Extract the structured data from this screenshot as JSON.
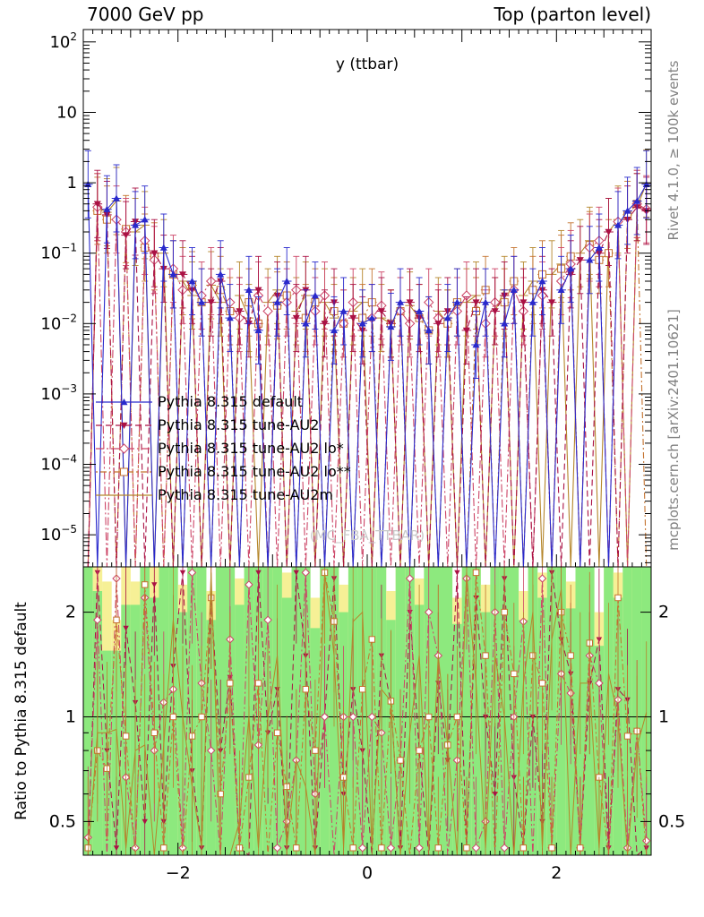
{
  "header": {
    "left": "7000 GeV pp",
    "right": "Top (parton level)"
  },
  "side_captions": {
    "top": "Rivet 4.1.0, ≥ 100k events",
    "bottom": "mcplots.cern.ch [arXiv:2401.10621]"
  },
  "ratio_ylabel": "Ratio to Pythia 8.315 default",
  "watermark": "(MC_FBA_TTBAR)",
  "chart_data": {
    "type": "line",
    "title": "y (ttbar)",
    "x_range": [
      -3,
      3
    ],
    "n_bins": 60,
    "y_scale": "log",
    "y_range": [
      3.5e-06,
      150
    ],
    "err_factor_main": 3,
    "colors": {
      "band_green": "#8de97e",
      "band_yellow": "#f6f096",
      "frame": "#000000"
    },
    "x_ticks": [
      {
        "v": -2,
        "label": "−2"
      },
      {
        "v": 0,
        "label": "0"
      },
      {
        "v": 2,
        "label": "2"
      }
    ],
    "y_ticks": [
      {
        "v": 100,
        "mant": "10",
        "exp": "2"
      },
      {
        "v": 10,
        "mant": "10",
        "exp": ""
      },
      {
        "v": 1,
        "mant": "1",
        "exp": ""
      },
      {
        "v": 0.1,
        "mant": "10",
        "exp": "−1"
      },
      {
        "v": 0.01,
        "mant": "10",
        "exp": "−2"
      },
      {
        "v": 0.001,
        "mant": "10",
        "exp": "−3"
      },
      {
        "v": 0.0001,
        "mant": "10",
        "exp": "−4"
      },
      {
        "v": 1e-05,
        "mant": "10",
        "exp": "−5"
      }
    ],
    "series": [
      {
        "name": "Pythia 8.315 default",
        "color": "#2929cc",
        "dash": "",
        "marker": "triangle-up",
        "values": [
          0.95,
          3e-06,
          0.42,
          0.6,
          3e-06,
          0.25,
          0.3,
          3e-06,
          0.12,
          0.05,
          3e-06,
          0.04,
          0.02,
          3e-06,
          0.05,
          0.012,
          3e-06,
          0.03,
          0.008,
          3e-06,
          0.02,
          0.04,
          3e-06,
          0.01,
          0.025,
          3e-06,
          0.008,
          0.015,
          3e-06,
          0.01,
          0.012,
          3e-06,
          0.009,
          0.02,
          3e-06,
          0.015,
          0.008,
          3e-06,
          0.012,
          0.02,
          3e-06,
          0.005,
          0.02,
          3e-06,
          0.01,
          0.03,
          3e-06,
          0.02,
          0.04,
          3e-06,
          0.03,
          0.06,
          3e-06,
          0.08,
          0.12,
          3e-06,
          0.25,
          0.4,
          0.55,
          0.95
        ]
      },
      {
        "name": "Pythia 8.315 tune-AU2",
        "color": "#aa1144",
        "dash": "7 4",
        "marker": "triangle-down",
        "values": [
          3e-06,
          0.5,
          0.35,
          3e-06,
          0.18,
          0.28,
          3e-06,
          0.1,
          0.06,
          3e-06,
          0.05,
          0.03,
          3e-06,
          0.02,
          0.04,
          3e-06,
          0.015,
          0.01,
          0.03,
          3e-06,
          0.025,
          3e-06,
          0.012,
          0.03,
          3e-06,
          0.01,
          0.02,
          3e-06,
          0.012,
          0.008,
          3e-06,
          0.015,
          0.01,
          3e-06,
          0.02,
          0.012,
          3e-06,
          0.01,
          0.015,
          3e-06,
          0.008,
          0.02,
          3e-06,
          0.015,
          0.025,
          3e-06,
          0.02,
          3e-06,
          0.03,
          0.02,
          3e-06,
          0.05,
          0.08,
          3e-06,
          0.1,
          0.2,
          3e-06,
          0.3,
          0.45,
          0.4
        ]
      },
      {
        "name": "Pythia 8.315 tune-AU2 lo*",
        "color": "#cc4466",
        "dash": "9 3 2 3",
        "marker": "diamond-open",
        "values": [
          3e-06,
          0.45,
          3e-06,
          0.3,
          0.2,
          3e-06,
          0.15,
          0.08,
          3e-06,
          0.06,
          0.03,
          3e-06,
          0.025,
          0.04,
          3e-06,
          0.02,
          0.012,
          3e-06,
          0.025,
          0.015,
          3e-06,
          0.02,
          0.03,
          3e-06,
          0.015,
          0.025,
          3e-06,
          0.01,
          0.02,
          3e-06,
          0.012,
          0.018,
          3e-06,
          0.015,
          0.01,
          3e-06,
          0.02,
          0.012,
          3e-06,
          0.015,
          0.025,
          3e-06,
          0.01,
          0.02,
          3e-06,
          0.03,
          0.015,
          3e-06,
          0.025,
          3e-06,
          0.04,
          0.07,
          3e-06,
          0.12,
          0.15,
          3e-06,
          0.28,
          3e-06,
          0.5,
          0.42
        ]
      },
      {
        "name": "Pythia 8.315 tune-AU2 lo**",
        "color": "#c4722e",
        "dash": "2 3 7 3",
        "marker": "square-open",
        "values": [
          3e-06,
          0.4,
          0.3,
          3e-06,
          0.22,
          3e-06,
          0.12,
          0.09,
          3e-06,
          0.05,
          3e-06,
          0.035,
          0.02,
          3e-06,
          0.03,
          0.015,
          3e-06,
          0.02,
          0.01,
          3e-06,
          0.018,
          0.025,
          3e-06,
          0.012,
          0.02,
          3e-06,
          0.015,
          0.01,
          3e-06,
          0.012,
          0.02,
          3e-06,
          0.01,
          0.015,
          3e-06,
          0.012,
          0.008,
          3e-06,
          0.01,
          0.02,
          3e-06,
          0.015,
          0.03,
          3e-06,
          0.02,
          0.04,
          3e-06,
          0.03,
          0.05,
          3e-06,
          0.06,
          0.09,
          3e-06,
          0.13,
          0.08,
          0.1,
          3e-06,
          0.35,
          0.5,
          3e-06
        ]
      },
      {
        "name": "Pythia 8.315 tune-AU2m",
        "color": "#b5862b",
        "dash": "",
        "marker": "none",
        "values": [
          3e-06,
          0.45,
          0.38,
          0.55,
          3e-06,
          0.2,
          0.25,
          3e-06,
          0.1,
          3e-06,
          0.04,
          0.025,
          3e-06,
          0.035,
          0.02,
          3e-06,
          0.025,
          0.012,
          3e-06,
          0.02,
          0.03,
          3e-06,
          0.015,
          0.025,
          3e-06,
          0.02,
          0.012,
          3e-06,
          0.015,
          0.02,
          3e-06,
          0.012,
          0.01,
          3e-06,
          0.018,
          0.012,
          3e-06,
          0.015,
          0.01,
          3e-06,
          0.02,
          0.025,
          3e-06,
          0.015,
          0.03,
          3e-06,
          0.025,
          0.04,
          3e-06,
          0.05,
          0.07,
          3e-06,
          0.1,
          0.15,
          3e-06,
          0.2,
          0.3,
          3e-06,
          0.45,
          0.98
        ]
      }
    ],
    "ratio": {
      "y_range": [
        0.4,
        2.7
      ],
      "ref": 1,
      "err_factor": 1.6,
      "ticks": [
        {
          "v": 0.5,
          "label": "0.5"
        },
        {
          "v": 1,
          "label": "1"
        },
        {
          "v": 2,
          "label": "2"
        }
      ],
      "green_top": [
        2.7,
        2.3,
        1.55,
        1.55,
        2.1,
        2.1,
        2.7,
        2.2,
        2.7,
        2.7,
        2.0,
        2.7,
        2.7,
        1.9,
        2.7,
        2.7,
        2.1,
        2.7,
        2.7,
        2.7,
        2.7,
        2.2,
        2.7,
        2.7,
        1.8,
        2.7,
        2.7,
        2.0,
        2.7,
        2.7,
        2.7,
        2.7,
        1.9,
        2.7,
        2.7,
        2.1,
        2.7,
        2.7,
        2.7,
        1.85,
        2.7,
        2.7,
        2.0,
        2.7,
        2.7,
        2.7,
        1.9,
        2.7,
        2.2,
        2.7,
        2.7,
        2.05,
        2.7,
        2.7,
        1.6,
        2.7,
        2.2,
        2.7,
        2.7,
        2.7
      ],
      "yellow_top": [
        2.7,
        2.7,
        2.45,
        1.9,
        2.7,
        2.45,
        2.7,
        2.7,
        2.7,
        2.7,
        2.4,
        2.7,
        2.7,
        2.3,
        2.7,
        2.7,
        2.5,
        2.7,
        2.7,
        2.7,
        2.7,
        2.6,
        2.7,
        2.7,
        2.2,
        2.7,
        2.7,
        2.4,
        2.7,
        2.7,
        2.7,
        2.7,
        2.3,
        2.7,
        2.7,
        2.5,
        2.7,
        2.7,
        2.7,
        2.2,
        2.7,
        2.7,
        2.4,
        2.7,
        2.7,
        2.7,
        2.3,
        2.7,
        2.6,
        2.7,
        2.7,
        2.45,
        2.7,
        2.7,
        2.0,
        2.7,
        2.6,
        2.7,
        2.7,
        2.7
      ],
      "series": [
        {
          "values": [
            0.35,
            2.6,
            0.8,
            0.42,
            1.8,
            1.1,
            0.5,
            2.4,
            0.5,
            1.4,
            2.6,
            0.7,
            0.42,
            2.2,
            0.8,
            1.3,
            0.42,
            0.35,
            2.6,
            0.9,
            1.2,
            0.42,
            2.6,
            1.5,
            0.42,
            1.0,
            2.5,
            0.6,
            1.2,
            0.8,
            0.35,
            1.5,
            1.1,
            0.42,
            2.0,
            0.8,
            0.35,
            1.25,
            0.75,
            2.6,
            0.42,
            2.2,
            1.0,
            0.6,
            2.5,
            0.67,
            0.42,
            1.0,
            0.5,
            2.6,
            1.67,
            1.33,
            0.42,
            1.25,
            1.67,
            0.42,
            1.2,
            1.12,
            0.35,
            0.42
          ]
        },
        {
          "values": [
            0.45,
            1.9,
            0.35,
            2.5,
            0.67,
            0.42,
            2.2,
            0.8,
            1.1,
            1.2,
            0.42,
            2.6,
            1.25,
            0.8,
            0.35,
            1.67,
            0.42,
            2.4,
            0.83,
            1.9,
            0.42,
            0.5,
            0.75,
            2.6,
            0.6,
            1.0,
            0.35,
            1.0,
            1.0,
            0.42,
            1.0,
            0.9,
            0.42,
            0.75,
            2.5,
            0.42,
            2.0,
            1.5,
            0.35,
            0.75,
            2.5,
            0.42,
            0.5,
            2.0,
            0.42,
            1.0,
            1.88,
            0.35,
            2.5,
            0.42,
            1.33,
            1.17,
            0.42,
            1.5,
            1.25,
            0.35,
            1.12,
            0.42,
            0.91,
            0.44
          ]
        },
        {
          "values": [
            0.42,
            0.8,
            0.71,
            1.9,
            0.88,
            0.35,
            2.4,
            0.9,
            0.42,
            1.0,
            0.35,
            0.88,
            1.0,
            2.2,
            0.6,
            1.25,
            0.42,
            0.67,
            1.25,
            0.35,
            0.9,
            0.63,
            0.42,
            1.2,
            0.8,
            2.6,
            1.88,
            0.67,
            0.42,
            1.2,
            1.67,
            0.42,
            1.11,
            0.75,
            0.35,
            0.8,
            1.0,
            0.42,
            0.83,
            1.0,
            0.42,
            2.6,
            1.5,
            0.35,
            2.0,
            1.33,
            0.42,
            1.5,
            1.25,
            0.42,
            2.0,
            1.5,
            0.42,
            1.63,
            0.67,
            0.35,
            2.2,
            0.88,
            0.91,
            0.35
          ]
        },
        {
          "values": [
            0.35,
            0.9,
            0.9,
            0.92,
            0.42,
            0.8,
            0.83,
            0.35,
            0.83,
            1.9,
            1.0,
            0.63,
            0.42,
            2.6,
            0.4,
            0.35,
            0.5,
            1.0,
            0.42,
            1.0,
            1.5,
            0.42,
            0.75,
            0.63,
            0.35,
            2.6,
            1.5,
            0.42,
            1.88,
            2.0,
            0.42,
            1.2,
            1.11,
            0.35,
            0.9,
            1.5,
            0.42,
            1.5,
            0.83,
            0.35,
            2.6,
            1.25,
            0.42,
            1.5,
            1.0,
            0.35,
            1.25,
            2.0,
            0.42,
            1.67,
            2.33,
            0.35,
            1.25,
            1.25,
            0.42,
            1.33,
            1.0,
            0.35,
            0.82,
            1.03
          ]
        }
      ]
    }
  }
}
